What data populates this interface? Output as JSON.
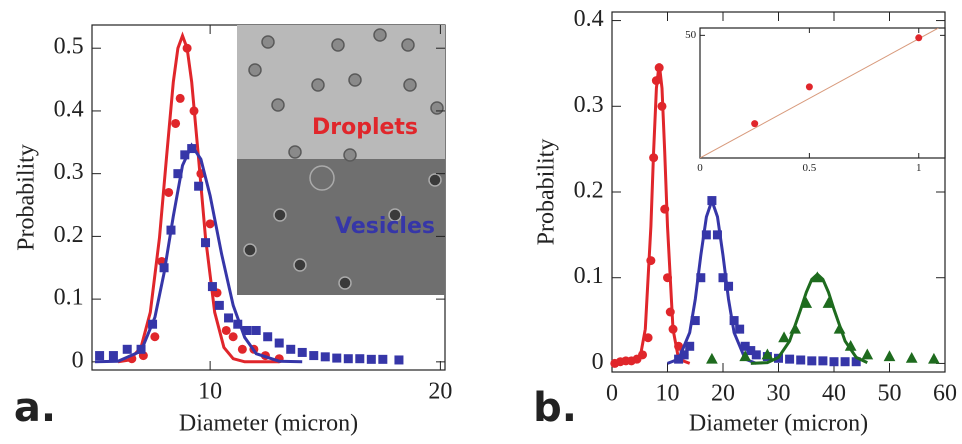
{
  "chart_data": [
    {
      "type": "scatter",
      "panel_label": "a.",
      "xlabel": "Diameter (micron)",
      "ylabel": "Probability",
      "xlim": [
        4.87,
        20.2
      ],
      "ylim": [
        -0.013,
        0.537
      ],
      "xticks": [
        10,
        20
      ],
      "yticks": [
        0,
        0.1,
        0.2,
        0.3,
        0.4,
        0.5
      ],
      "series": [
        {
          "name": "Droplets",
          "color": "#e0262b",
          "marker": "circle",
          "x": [
            6.6,
            7.1,
            7.6,
            7.9,
            8.2,
            8.5,
            8.7,
            9.0,
            9.3,
            9.6,
            10.0,
            10.3,
            10.7,
            11.0,
            11.4,
            11.9,
            12.4,
            13.0
          ],
          "values": [
            0.005,
            0.01,
            0.04,
            0.16,
            0.27,
            0.38,
            0.42,
            0.5,
            0.4,
            0.3,
            0.22,
            0.11,
            0.05,
            0.04,
            0.02,
            0.02,
            0.01,
            0.005
          ]
        },
        {
          "color": "#e0262b",
          "line": true,
          "x": [
            6,
            6.5,
            7,
            7.4,
            7.8,
            8.1,
            8.4,
            8.6,
            8.8,
            9.0,
            9.2,
            9.5,
            9.8,
            10.2,
            10.6,
            11,
            11.5,
            12,
            13
          ],
          "values": [
            0,
            0.003,
            0.023,
            0.079,
            0.198,
            0.324,
            0.446,
            0.5,
            0.52,
            0.5,
            0.446,
            0.324,
            0.198,
            0.079,
            0.023,
            0.005,
            0,
            0,
            0
          ]
        },
        {
          "name": "Vesicles",
          "color": "#3636a8",
          "marker": "square",
          "x": [
            5.2,
            5.8,
            6.4,
            7.0,
            7.5,
            8.0,
            8.3,
            8.6,
            8.9,
            9.2,
            9.5,
            9.8,
            10.1,
            10.4,
            10.8,
            11.2,
            11.6,
            12.0,
            12.5,
            13.0,
            13.5,
            14.0,
            14.5,
            15.0,
            15.5,
            16.0,
            16.5,
            17.0,
            17.5,
            18.2
          ],
          "values": [
            0.01,
            0.01,
            0.02,
            0.02,
            0.06,
            0.15,
            0.21,
            0.3,
            0.33,
            0.34,
            0.28,
            0.19,
            0.12,
            0.09,
            0.07,
            0.06,
            0.05,
            0.05,
            0.04,
            0.03,
            0.02,
            0.015,
            0.01,
            0.008,
            0.006,
            0.005,
            0.005,
            0.004,
            0.004,
            0.003
          ]
        },
        {
          "color": "#3636a8",
          "line": true,
          "x": [
            5,
            6,
            7,
            7.6,
            8,
            8.4,
            8.8,
            9.2,
            9.6,
            10,
            10.5,
            11,
            11.5,
            12,
            13,
            14
          ],
          "values": [
            0,
            0.001,
            0.017,
            0.071,
            0.142,
            0.232,
            0.313,
            0.345,
            0.323,
            0.265,
            0.172,
            0.09,
            0.039,
            0.013,
            0.001,
            0
          ]
        }
      ]
    },
    {
      "type": "scatter",
      "panel_label": "b.",
      "xlabel": "Diameter (micron)",
      "ylabel": "Probability",
      "xlim": [
        0,
        60
      ],
      "ylim": [
        -0.01,
        0.41
      ],
      "xticks": [
        0,
        10,
        20,
        30,
        40,
        50,
        60
      ],
      "yticks": [
        0,
        0.1,
        0.2,
        0.3,
        0.4
      ],
      "series": [
        {
          "color": "#e0262b",
          "marker": "circle",
          "x": [
            0.5,
            1.5,
            2.5,
            3.5,
            4.5,
            5.5,
            6.5,
            7,
            7.5,
            8,
            8.5,
            9,
            9.5,
            10,
            10.5,
            11,
            12,
            13
          ],
          "values": [
            0,
            0.002,
            0.003,
            0.003,
            0.005,
            0.01,
            0.03,
            0.12,
            0.24,
            0.33,
            0.345,
            0.3,
            0.18,
            0.1,
            0.06,
            0.04,
            0.02,
            0.01
          ]
        },
        {
          "color": "#e0262b",
          "line": true,
          "x": [
            3,
            5,
            6,
            7,
            7.5,
            8,
            8.5,
            9,
            9.5,
            10,
            11,
            12,
            14
          ],
          "values": [
            0,
            0.005,
            0.04,
            0.16,
            0.247,
            0.321,
            0.35,
            0.321,
            0.247,
            0.16,
            0.04,
            0.005,
            0
          ]
        },
        {
          "color": "#3636a8",
          "marker": "square",
          "x": [
            12,
            13,
            14,
            15,
            16,
            17,
            18,
            19,
            20,
            21,
            22,
            23,
            24,
            25,
            26,
            28,
            30,
            32,
            34,
            36,
            38,
            40,
            42,
            44
          ],
          "values": [
            0.005,
            0.01,
            0.02,
            0.05,
            0.1,
            0.15,
            0.19,
            0.15,
            0.1,
            0.09,
            0.05,
            0.04,
            0.02,
            0.015,
            0.01,
            0.008,
            0.006,
            0.005,
            0.004,
            0.003,
            0.003,
            0.002,
            0.002,
            0.002
          ]
        },
        {
          "color": "#3636a8",
          "line": true,
          "x": [
            10,
            12,
            14,
            15,
            16,
            17,
            18,
            19,
            20,
            21,
            22,
            24,
            26
          ],
          "values": [
            0,
            0.005,
            0.036,
            0.075,
            0.126,
            0.171,
            0.19,
            0.171,
            0.126,
            0.075,
            0.036,
            0.005,
            0
          ]
        },
        {
          "color": "#1e6b1e",
          "marker": "triangle",
          "x": [
            18,
            24,
            28,
            31,
            33,
            35,
            37,
            39,
            41,
            43,
            46,
            50,
            54,
            58
          ],
          "values": [
            0.005,
            0.008,
            0.01,
            0.03,
            0.04,
            0.07,
            0.1,
            0.07,
            0.04,
            0.02,
            0.01,
            0.008,
            0.006,
            0.005
          ]
        },
        {
          "color": "#1e6b1e",
          "line": true,
          "x": [
            25,
            28,
            30,
            32,
            34,
            35,
            36,
            37,
            38,
            39,
            40,
            42,
            44,
            46
          ],
          "values": [
            0,
            0.001,
            0.007,
            0.026,
            0.063,
            0.083,
            0.098,
            0.104,
            0.098,
            0.083,
            0.063,
            0.026,
            0.007,
            0.001
          ]
        }
      ],
      "inset": {
        "type": "scatter",
        "xlim": [
          0,
          1.12
        ],
        "ylim": [
          0,
          53
        ],
        "xticks": [
          0,
          0.5,
          1
        ],
        "yticks": [
          50
        ],
        "series": [
          {
            "color": "#d89a7c",
            "line": true,
            "x": [
              0,
              1.09
            ],
            "values": [
              0,
              53
            ]
          },
          {
            "color": "#e0262b",
            "marker": "circle",
            "x": [
              0.25,
              0.5,
              1
            ],
            "values": [
              14,
              29,
              49
            ]
          }
        ]
      }
    }
  ]
}
